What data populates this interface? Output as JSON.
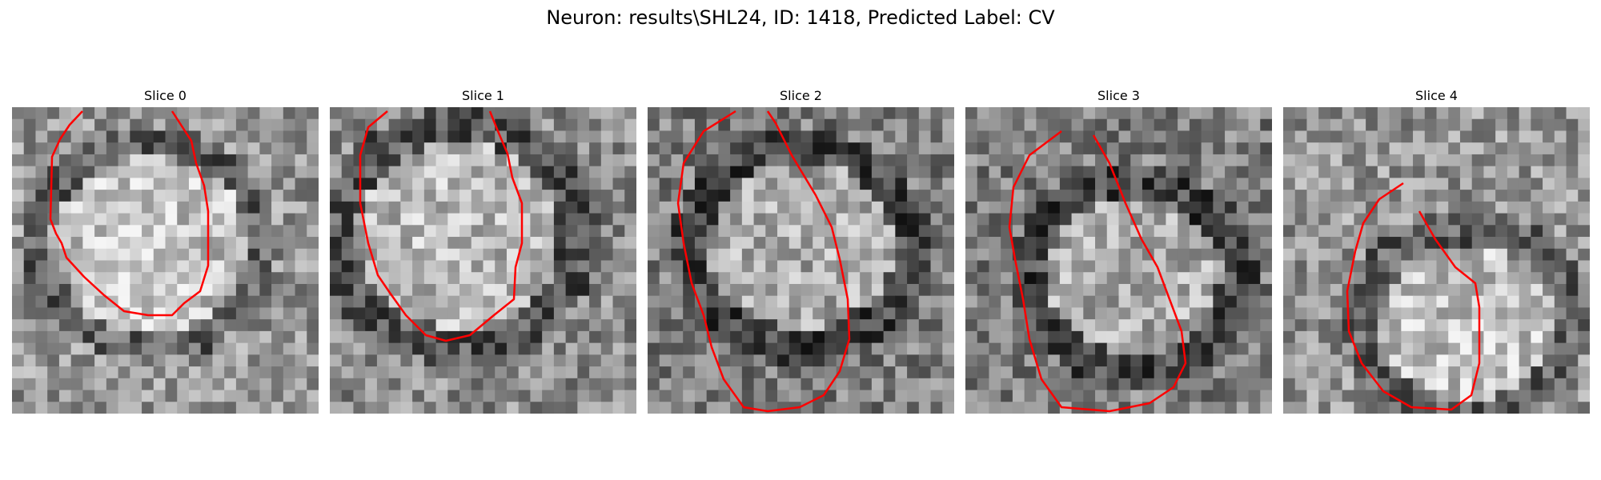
{
  "figure": {
    "title": "Neuron: results\\SHL24, ID: 1418, Predicted Label: CV"
  },
  "panels": [
    {
      "title": "Slice 0",
      "seed": 11,
      "base": 150,
      "bright_center": [
        0.45,
        0.45
      ],
      "bright_r": 0.32,
      "dark_ring": 0.42,
      "contour_color": "#ff0000"
    },
    {
      "title": "Slice 1",
      "seed": 23,
      "base": 140,
      "bright_center": [
        0.42,
        0.42
      ],
      "bright_r": 0.33,
      "dark_ring": 0.46,
      "contour_color": "#ff0000"
    },
    {
      "title": "Slice 2",
      "seed": 37,
      "base": 125,
      "bright_center": [
        0.5,
        0.45
      ],
      "bright_r": 0.3,
      "dark_ring": 0.42,
      "contour_color": "#ff0000"
    },
    {
      "title": "Slice 3",
      "seed": 51,
      "base": 125,
      "bright_center": [
        0.55,
        0.55
      ],
      "bright_r": 0.28,
      "dark_ring": 0.4,
      "contour_color": "#ff0000"
    },
    {
      "title": "Slice 4",
      "seed": 67,
      "base": 150,
      "bright_center": [
        0.6,
        0.7
      ],
      "bright_r": 0.28,
      "dark_ring": 0.4,
      "contour_color": "#ff0000"
    }
  ]
}
